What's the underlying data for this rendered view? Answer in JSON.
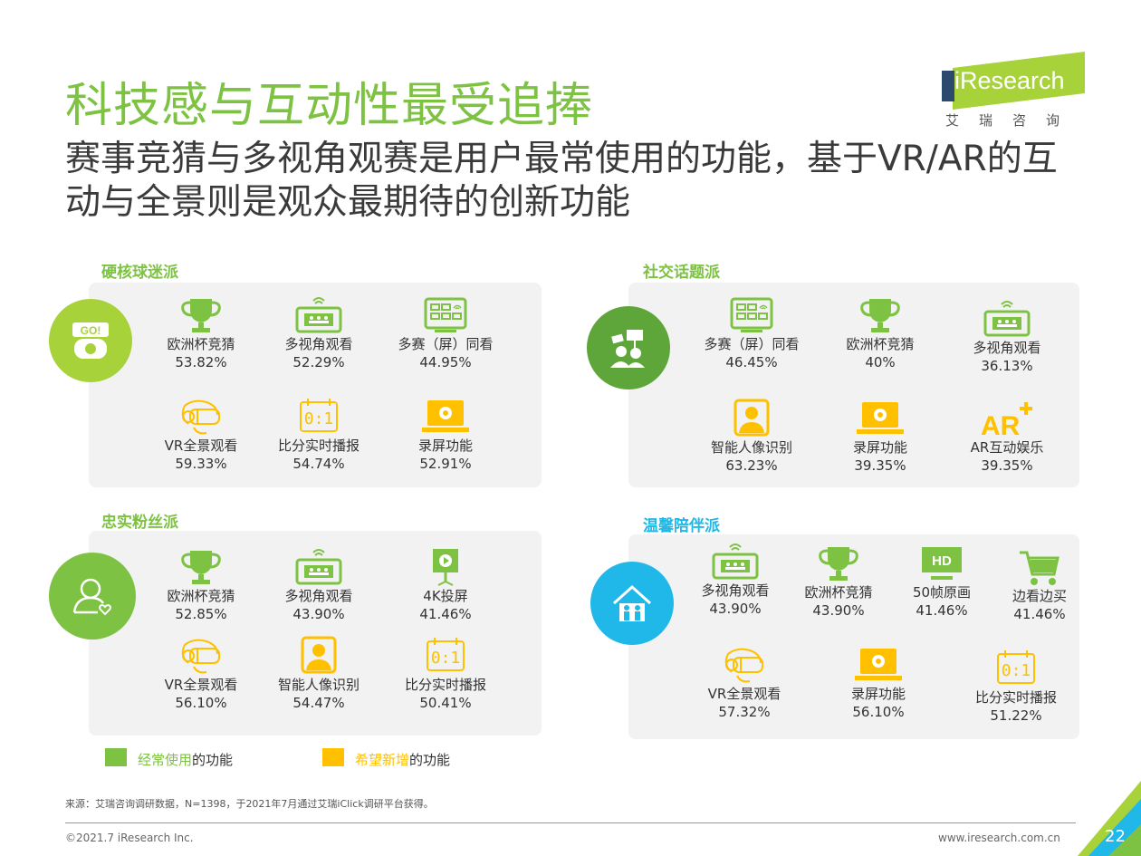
{
  "header": {
    "title": "科技感与互动性最受追捧",
    "subtitle": "赛事竞猜与多视角观赛是用户最常使用的功能，基于VR/AR的互动与全景则是观众最期待的创新功能"
  },
  "logo": {
    "name": "iResearch",
    "sub": "艾瑞咨询"
  },
  "colors": {
    "green": "#7dc242",
    "yellow": "#ffc000",
    "panel": "#f2f2f2",
    "blue": "#1fb8e8"
  },
  "groups": [
    {
      "title": "硬核球迷派",
      "icon": "go-fan-icon",
      "items": [
        {
          "label": "欧洲杯竞猜",
          "value": "53.82%",
          "icon": "trophy-icon",
          "type": "frequent"
        },
        {
          "label": "多视角观看",
          "value": "52.29%",
          "icon": "multi-view-icon",
          "type": "frequent"
        },
        {
          "label": "多赛（屏）同看",
          "value": "44.95%",
          "icon": "multi-screen-icon",
          "type": "frequent"
        },
        {
          "label": "VR全景观看",
          "value": "59.33%",
          "icon": "vr-headset-icon",
          "type": "desired"
        },
        {
          "label": "比分实时播报",
          "value": "54.74%",
          "icon": "live-score-icon",
          "type": "desired"
        },
        {
          "label": "录屏功能",
          "value": "52.91%",
          "icon": "screen-record-icon",
          "type": "desired"
        }
      ]
    },
    {
      "title": "社交话题派",
      "icon": "social-group-icon",
      "items": [
        {
          "label": "多赛（屏）同看",
          "value": "46.45%",
          "icon": "multi-screen-icon",
          "type": "frequent"
        },
        {
          "label": "欧洲杯竞猜",
          "value": "40%",
          "icon": "trophy-icon",
          "type": "frequent"
        },
        {
          "label": "多视角观看",
          "value": "36.13%",
          "icon": "multi-view-icon",
          "type": "frequent"
        },
        {
          "label": "智能人像识别",
          "value": "63.23%",
          "icon": "face-recognition-icon",
          "type": "desired"
        },
        {
          "label": "录屏功能",
          "value": "39.35%",
          "icon": "screen-record-icon",
          "type": "desired"
        },
        {
          "label": "AR互动娱乐",
          "value": "39.35%",
          "icon": "ar-icon",
          "type": "desired"
        }
      ]
    },
    {
      "title": "忠实粉丝派",
      "icon": "fan-heart-icon",
      "items": [
        {
          "label": "欧洲杯竞猜",
          "value": "52.85%",
          "icon": "trophy-icon",
          "type": "frequent"
        },
        {
          "label": "多视角观看",
          "value": "43.90%",
          "icon": "multi-view-icon",
          "type": "frequent"
        },
        {
          "label": "4K投屏",
          "value": "41.46%",
          "icon": "projector-icon",
          "type": "frequent"
        },
        {
          "label": "VR全景观看",
          "value": "56.10%",
          "icon": "vr-headset-icon",
          "type": "desired"
        },
        {
          "label": "智能人像识别",
          "value": "54.47%",
          "icon": "face-recognition-icon",
          "type": "desired"
        },
        {
          "label": "比分实时播报",
          "value": "50.41%",
          "icon": "live-score-icon",
          "type": "desired"
        }
      ]
    },
    {
      "title": "温馨陪伴派",
      "icon": "family-home-icon",
      "items": [
        {
          "label": "多视角观看",
          "value": "43.90%",
          "icon": "multi-view-icon",
          "type": "frequent"
        },
        {
          "label": "欧洲杯竞猜",
          "value": "43.90%",
          "icon": "trophy-icon",
          "type": "frequent"
        },
        {
          "label": "50帧原画",
          "value": "41.46%",
          "icon": "hd-icon",
          "type": "frequent"
        },
        {
          "label": "边看边买",
          "value": "41.46%",
          "icon": "shopping-cart-icon",
          "type": "frequent"
        },
        {
          "label": "VR全景观看",
          "value": "57.32%",
          "icon": "vr-headset-icon",
          "type": "desired"
        },
        {
          "label": "录屏功能",
          "value": "56.10%",
          "icon": "screen-record-icon",
          "type": "desired"
        },
        {
          "label": "比分实时播报",
          "value": "51.22%",
          "icon": "live-score-icon",
          "type": "desired"
        }
      ]
    }
  ],
  "legend": {
    "frequent_highlight": "经常使用",
    "desired_highlight": "希望新增",
    "suffix": "的功能"
  },
  "footer": {
    "source": "来源：艾瑞咨询调研数据，N=1398，于2021年7月通过艾瑞iClick调研平台获得。",
    "copyright": "©2021.7 iResearch Inc.",
    "website": "www.iresearch.com.cn",
    "page": "22"
  }
}
